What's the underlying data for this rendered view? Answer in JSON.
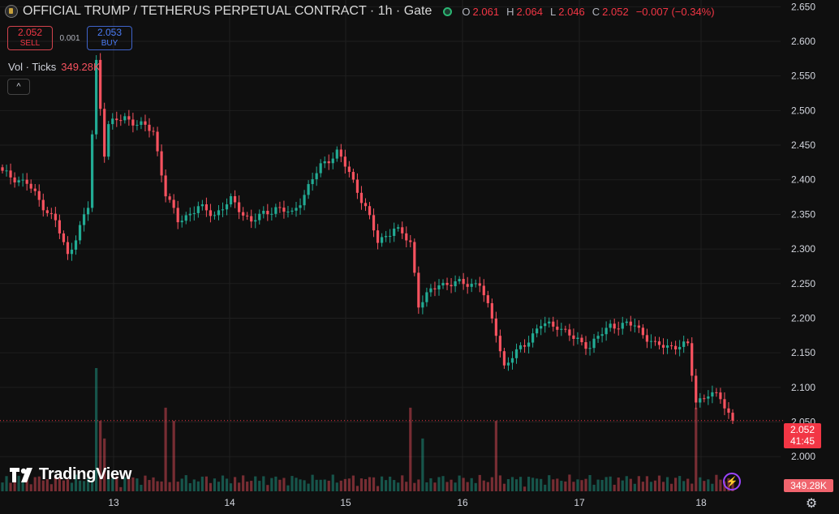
{
  "header": {
    "title": "OFFICIAL TRUMP / TETHERUS PERPETUAL CONTRACT · 1h · Gate",
    "ohlc": [
      {
        "key": "O",
        "value": "2.061"
      },
      {
        "key": "H",
        "value": "2.064"
      },
      {
        "key": "L",
        "value": "2.046"
      },
      {
        "key": "C",
        "value": "2.052"
      }
    ],
    "change": "−0.007 (−0.34%)"
  },
  "trade": {
    "sell_price": "2.052",
    "sell_label": "SELL",
    "spread": "0.001",
    "buy_price": "2.053",
    "buy_label": "BUY"
  },
  "volume_indicator": {
    "label": "Vol · Ticks",
    "value": "349.28K"
  },
  "collapse_label": "^",
  "logo_text": "TradingView",
  "price_badge": {
    "price": "2.052",
    "countdown": "41:45"
  },
  "volume_badge": "349.28K",
  "colors": {
    "up": "#22ab94",
    "down": "#f7525f",
    "background": "#0f0f0f"
  },
  "chart_data": {
    "type": "candlestick",
    "x_tick_labels": [
      "13",
      "14",
      "15",
      "16",
      "17",
      "18"
    ],
    "y_tick_labels": [
      "2.000",
      "2.050",
      "2.100",
      "2.150",
      "2.200",
      "2.250",
      "2.300",
      "2.350",
      "2.400",
      "2.450",
      "2.500",
      "2.550",
      "2.600",
      "2.650"
    ],
    "ylim": [
      1.985,
      2.655
    ],
    "last_price": 2.052,
    "grid": true,
    "anchors_close": [
      [
        0,
        2.41
      ],
      [
        6,
        2.395
      ],
      [
        9,
        2.37
      ],
      [
        13,
        2.34
      ],
      [
        16,
        2.29
      ],
      [
        21,
        2.36
      ],
      [
        23,
        2.57
      ],
      [
        25,
        2.44
      ],
      [
        26,
        2.48
      ],
      [
        30,
        2.49
      ],
      [
        37,
        2.47
      ],
      [
        40,
        2.38
      ],
      [
        43,
        2.34
      ],
      [
        48,
        2.36
      ],
      [
        52,
        2.35
      ],
      [
        56,
        2.37
      ],
      [
        61,
        2.34
      ],
      [
        67,
        2.36
      ],
      [
        71,
        2.35
      ],
      [
        74,
        2.38
      ],
      [
        78,
        2.42
      ],
      [
        82,
        2.44
      ],
      [
        85,
        2.41
      ],
      [
        89,
        2.36
      ],
      [
        92,
        2.31
      ],
      [
        96,
        2.33
      ],
      [
        100,
        2.31
      ],
      [
        102,
        2.22
      ],
      [
        107,
        2.25
      ],
      [
        114,
        2.25
      ],
      [
        117,
        2.25
      ],
      [
        121,
        2.18
      ],
      [
        123,
        2.13
      ],
      [
        126,
        2.15
      ],
      [
        132,
        2.19
      ],
      [
        136,
        2.19
      ],
      [
        140,
        2.17
      ],
      [
        144,
        2.16
      ],
      [
        149,
        2.19
      ],
      [
        155,
        2.19
      ],
      [
        160,
        2.16
      ],
      [
        164,
        2.16
      ],
      [
        168,
        2.16
      ],
      [
        170,
        2.08
      ],
      [
        173,
        2.09
      ],
      [
        176,
        2.085
      ],
      [
        179,
        2.052
      ]
    ],
    "volume_scale_max": 140,
    "volume_spikes": [
      [
        23,
        140
      ],
      [
        24,
        80
      ],
      [
        25,
        60
      ],
      [
        40,
        95
      ],
      [
        42,
        80
      ],
      [
        100,
        95
      ],
      [
        103,
        60
      ],
      [
        121,
        80
      ],
      [
        170,
        95
      ]
    ]
  }
}
